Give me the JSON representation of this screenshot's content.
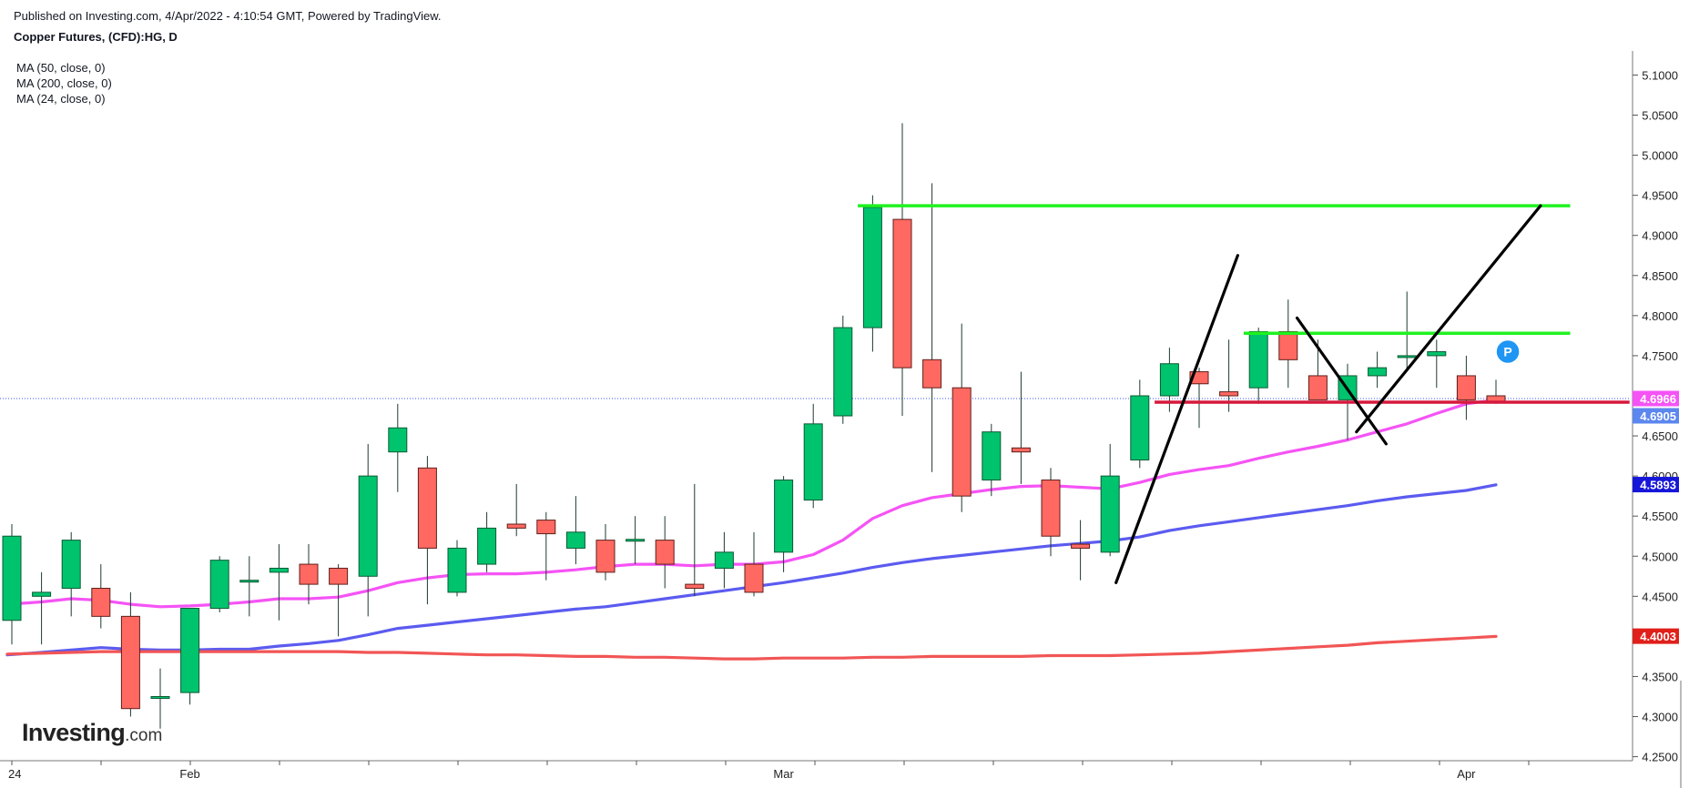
{
  "header": {
    "published": "Published on Investing.com, 4/Apr/2022 - 4:10:54 GMT, Powered by TradingView.",
    "symbol_title": "Copper Futures, (CFD):HG, D"
  },
  "indicators": [
    "MA (50, close, 0)",
    "MA (200, close, 0)",
    "MA (24, close, 0)"
  ],
  "logo": {
    "brand": "Investing",
    "tld": ".com"
  },
  "colors": {
    "up": "#00c36d",
    "down": "#ff6961",
    "wick": "#1e3a2f",
    "ma24": "#f553f5",
    "ma50": "#5b5bf0",
    "ma200": "#f25555",
    "support": "#d6193d",
    "resistance": "#1ff21f",
    "trend": "#000000",
    "price_line": "#3a55ff"
  },
  "chart_data": {
    "type": "candlestick",
    "title": "Copper Futures, (CFD):HG, D",
    "ylim": [
      4.245,
      5.13
    ],
    "y_ticks": [
      4.25,
      4.3,
      4.35,
      4.4,
      4.45,
      4.5,
      4.55,
      4.6,
      4.65,
      4.7,
      4.75,
      4.8,
      4.85,
      4.9,
      4.95,
      5.0,
      5.05,
      5.1
    ],
    "y_tick_labels": [
      "4.2500",
      "4.3000",
      "4.3500",
      "4.4000",
      "4.4500",
      "4.5000",
      "4.5500",
      "4.6000",
      "4.6500",
      "4.7000",
      "4.7500",
      "4.8000",
      "4.8500",
      "4.9000",
      "4.9500",
      "5.0000",
      "5.0500",
      "5.1000"
    ],
    "x_labels": [
      {
        "bar": 0,
        "text": "24"
      },
      {
        "bar": 6,
        "text": "Feb"
      },
      {
        "bar": 26,
        "text": "Mar"
      },
      {
        "bar": 49,
        "text": "Apr"
      }
    ],
    "candles": [
      {
        "o": 4.42,
        "h": 4.54,
        "l": 4.39,
        "c": 4.525
      },
      {
        "o": 4.45,
        "h": 4.48,
        "l": 4.39,
        "c": 4.455
      },
      {
        "o": 4.46,
        "h": 4.53,
        "l": 4.425,
        "c": 4.52
      },
      {
        "o": 4.46,
        "h": 4.49,
        "l": 4.41,
        "c": 4.425
      },
      {
        "o": 4.425,
        "h": 4.455,
        "l": 4.3,
        "c": 4.31
      },
      {
        "o": 4.325,
        "h": 4.36,
        "l": 4.285,
        "c": 4.325
      },
      {
        "o": 4.33,
        "h": 4.435,
        "l": 4.315,
        "c": 4.435
      },
      {
        "o": 4.435,
        "h": 4.5,
        "l": 4.43,
        "c": 4.495
      },
      {
        "o": 4.47,
        "h": 4.5,
        "l": 4.425,
        "c": 4.47
      },
      {
        "o": 4.48,
        "h": 4.515,
        "l": 4.42,
        "c": 4.485
      },
      {
        "o": 4.49,
        "h": 4.515,
        "l": 4.44,
        "c": 4.465
      },
      {
        "o": 4.485,
        "h": 4.49,
        "l": 4.4,
        "c": 4.465
      },
      {
        "o": 4.475,
        "h": 4.64,
        "l": 4.425,
        "c": 4.6
      },
      {
        "o": 4.63,
        "h": 4.69,
        "l": 4.58,
        "c": 4.66
      },
      {
        "o": 4.61,
        "h": 4.625,
        "l": 4.44,
        "c": 4.51
      },
      {
        "o": 4.455,
        "h": 4.52,
        "l": 4.45,
        "c": 4.51
      },
      {
        "o": 4.49,
        "h": 4.555,
        "l": 4.48,
        "c": 4.535
      },
      {
        "o": 4.54,
        "h": 4.59,
        "l": 4.525,
        "c": 4.535
      },
      {
        "o": 4.545,
        "h": 4.555,
        "l": 4.47,
        "c": 4.528
      },
      {
        "o": 4.51,
        "h": 4.575,
        "l": 4.49,
        "c": 4.53
      },
      {
        "o": 4.52,
        "h": 4.54,
        "l": 4.47,
        "c": 4.48
      },
      {
        "o": 4.519,
        "h": 4.55,
        "l": 4.49,
        "c": 4.521
      },
      {
        "o": 4.52,
        "h": 4.55,
        "l": 4.46,
        "c": 4.49
      },
      {
        "o": 4.465,
        "h": 4.59,
        "l": 4.45,
        "c": 4.46
      },
      {
        "o": 4.485,
        "h": 4.53,
        "l": 4.46,
        "c": 4.505
      },
      {
        "o": 4.49,
        "h": 4.53,
        "l": 4.45,
        "c": 4.455
      },
      {
        "o": 4.505,
        "h": 4.6,
        "l": 4.48,
        "c": 4.595
      },
      {
        "o": 4.57,
        "h": 4.69,
        "l": 4.56,
        "c": 4.665
      },
      {
        "o": 4.675,
        "h": 4.8,
        "l": 4.665,
        "c": 4.785
      },
      {
        "o": 4.785,
        "h": 4.95,
        "l": 4.755,
        "c": 4.935
      },
      {
        "o": 4.92,
        "h": 5.04,
        "l": 4.675,
        "c": 4.735
      },
      {
        "o": 4.745,
        "h": 4.965,
        "l": 4.605,
        "c": 4.71
      },
      {
        "o": 4.71,
        "h": 4.79,
        "l": 4.555,
        "c": 4.575
      },
      {
        "o": 4.595,
        "h": 4.665,
        "l": 4.575,
        "c": 4.655
      },
      {
        "o": 4.635,
        "h": 4.73,
        "l": 4.59,
        "c": 4.63
      },
      {
        "o": 4.595,
        "h": 4.61,
        "l": 4.5,
        "c": 4.525
      },
      {
        "o": 4.515,
        "h": 4.545,
        "l": 4.47,
        "c": 4.51
      },
      {
        "o": 4.505,
        "h": 4.64,
        "l": 4.5,
        "c": 4.6
      },
      {
        "o": 4.62,
        "h": 4.72,
        "l": 4.61,
        "c": 4.7
      },
      {
        "o": 4.7,
        "h": 4.76,
        "l": 4.68,
        "c": 4.74
      },
      {
        "o": 4.73,
        "h": 4.735,
        "l": 4.66,
        "c": 4.715
      },
      {
        "o": 4.705,
        "h": 4.77,
        "l": 4.68,
        "c": 4.7
      },
      {
        "o": 4.71,
        "h": 4.785,
        "l": 4.69,
        "c": 4.78
      },
      {
        "o": 4.78,
        "h": 4.82,
        "l": 4.71,
        "c": 4.745
      },
      {
        "o": 4.725,
        "h": 4.77,
        "l": 4.695,
        "c": 4.695
      },
      {
        "o": 4.695,
        "h": 4.74,
        "l": 4.645,
        "c": 4.725
      },
      {
        "o": 4.725,
        "h": 4.755,
        "l": 4.71,
        "c": 4.735
      },
      {
        "o": 4.75,
        "h": 4.83,
        "l": 4.73,
        "c": 4.75
      },
      {
        "o": 4.75,
        "h": 4.77,
        "l": 4.71,
        "c": 4.755
      },
      {
        "o": 4.725,
        "h": 4.75,
        "l": 4.67,
        "c": 4.695
      },
      {
        "o": 4.7,
        "h": 4.72,
        "l": 4.69,
        "c": 4.692
      }
    ],
    "series": [
      {
        "name": "MA (24, close, 0)",
        "color": "#f553f5",
        "values": [
          4.44,
          4.443,
          4.447,
          4.445,
          4.44,
          4.437,
          4.438,
          4.44,
          4.443,
          4.447,
          4.447,
          4.449,
          4.457,
          4.467,
          4.473,
          4.477,
          4.478,
          4.478,
          4.48,
          4.483,
          4.487,
          4.49,
          4.49,
          4.488,
          4.49,
          4.49,
          4.493,
          4.502,
          4.52,
          4.547,
          4.563,
          4.573,
          4.578,
          4.583,
          4.587,
          4.588,
          4.586,
          4.584,
          4.592,
          4.602,
          4.608,
          4.613,
          4.622,
          4.63,
          4.637,
          4.645,
          4.655,
          4.665,
          4.678,
          4.69,
          4.695
        ]
      },
      {
        "name": "MA (50, close, 0)",
        "color": "#5b5bf0",
        "values": [
          4.377,
          4.38,
          4.383,
          4.386,
          4.384,
          4.383,
          4.383,
          4.384,
          4.384,
          4.388,
          4.391,
          4.395,
          4.402,
          4.41,
          4.414,
          4.418,
          4.422,
          4.426,
          4.43,
          4.434,
          4.437,
          4.442,
          4.447,
          4.452,
          4.457,
          4.462,
          4.467,
          4.473,
          4.479,
          4.486,
          4.492,
          4.497,
          4.501,
          4.505,
          4.509,
          4.513,
          4.516,
          4.519,
          4.524,
          4.532,
          4.538,
          4.543,
          4.548,
          4.553,
          4.558,
          4.563,
          4.569,
          4.574,
          4.578,
          4.582,
          4.589
        ]
      },
      {
        "name": "MA (200, close, 0)",
        "color": "#f25555",
        "values": [
          4.378,
          4.379,
          4.38,
          4.381,
          4.381,
          4.381,
          4.381,
          4.381,
          4.381,
          4.381,
          4.381,
          4.381,
          4.38,
          4.38,
          4.379,
          4.378,
          4.377,
          4.377,
          4.376,
          4.375,
          4.375,
          4.374,
          4.374,
          4.373,
          4.372,
          4.372,
          4.373,
          4.373,
          4.373,
          4.374,
          4.374,
          4.375,
          4.375,
          4.375,
          4.375,
          4.376,
          4.376,
          4.376,
          4.377,
          4.378,
          4.379,
          4.381,
          4.383,
          4.385,
          4.387,
          4.389,
          4.392,
          4.394,
          4.396,
          4.398,
          4.4
        ]
      }
    ],
    "price_tags": [
      {
        "value": 4.6966,
        "text": "4.6966",
        "color": "#f553f5"
      },
      {
        "value": 4.6905,
        "text": "4.6905",
        "color": "#5c87ee"
      },
      {
        "value": 4.5893,
        "text": "4.5893",
        "color": "#1616d9"
      },
      {
        "value": 4.4003,
        "text": "4.4003",
        "color": "#e0201a"
      }
    ],
    "current_price": 4.6966,
    "annotations": {
      "hlines": [
        {
          "from_bar": 28.5,
          "to_bar": 52.5,
          "y": 4.937,
          "color": "#1ff21f"
        },
        {
          "from_bar": 41.5,
          "to_bar": 52.5,
          "y": 4.778,
          "color": "#1ff21f"
        },
        {
          "from_bar": 38.5,
          "to_bar": 54.5,
          "y": 4.692,
          "color": "#d6193d"
        }
      ],
      "trendlines": [
        {
          "x1": 37.2,
          "y1": 4.467,
          "x2": 41.3,
          "y2": 4.875
        },
        {
          "x1": 43.3,
          "y1": 4.797,
          "x2": 46.3,
          "y2": 4.64
        },
        {
          "x1": 45.3,
          "y1": 4.655,
          "x2": 51.5,
          "y2": 4.937
        }
      ],
      "badge": {
        "bar": 50.4,
        "y": 4.755,
        "text": "P"
      }
    }
  }
}
